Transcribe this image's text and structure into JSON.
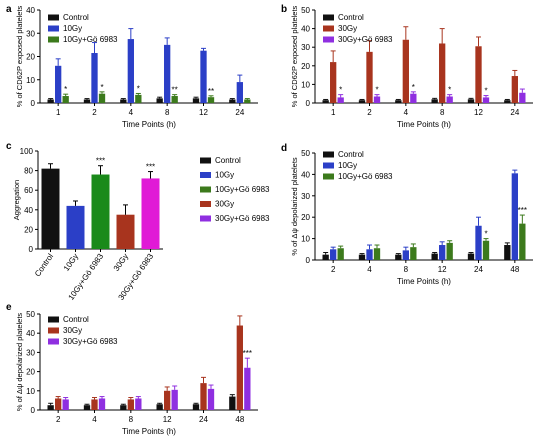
{
  "chart_data": [
    {
      "panel": "a",
      "type": "bar",
      "ylabel": "% of CD62P exposed platelets",
      "xlabel": "Time Points (h)",
      "categories": [
        "1",
        "2",
        "4",
        "8",
        "12",
        "24"
      ],
      "ylim": [
        0,
        40
      ],
      "yticks": [
        0,
        10,
        20,
        30,
        40
      ],
      "legend": "top-left",
      "series": [
        {
          "name": "Control",
          "color": "#111111",
          "values": [
            1.5,
            1.5,
            1.5,
            2,
            2,
            1.5
          ],
          "errors": [
            0.4,
            0.4,
            0.4,
            0.5,
            0.5,
            0.4
          ]
        },
        {
          "name": "10Gy",
          "color": "#2b3fc7",
          "values": [
            16,
            21.5,
            27.5,
            25,
            22.5,
            9
          ],
          "errors": [
            3,
            4.5,
            4.5,
            3,
            1,
            3
          ]
        },
        {
          "name": "10Gy+Gö 6983",
          "color": "#3c7a1c",
          "values": [
            3,
            4,
            3.5,
            3,
            2.5,
            1.5
          ],
          "errors": [
            0.8,
            0.8,
            0.6,
            0.6,
            0.6,
            0.4
          ]
        }
      ],
      "annotations": [
        "*",
        "*",
        "*",
        "**",
        "**",
        ""
      ]
    },
    {
      "panel": "b",
      "type": "bar",
      "ylabel": "% of CD62P exposed platelets",
      "xlabel": "Time Points (h)",
      "categories": [
        "1",
        "2",
        "4",
        "8",
        "12",
        "24"
      ],
      "ylim": [
        0,
        50
      ],
      "yticks": [
        0,
        10,
        20,
        30,
        40,
        50
      ],
      "legend": "top-left",
      "series": [
        {
          "name": "Control",
          "color": "#111111",
          "values": [
            1.5,
            1.5,
            1.5,
            2,
            2,
            1.5
          ],
          "errors": [
            0.4,
            0.4,
            0.4,
            0.5,
            0.5,
            0.4
          ]
        },
        {
          "name": "30Gy",
          "color": "#a8341e",
          "values": [
            22,
            27.5,
            34,
            32,
            30.5,
            14.5
          ],
          "errors": [
            6,
            6,
            7,
            8,
            5,
            3
          ]
        },
        {
          "name": "30Gy+Gö 6983",
          "color": "#8f2fe0",
          "values": [
            3,
            3.5,
            5,
            3.5,
            3,
            5.5
          ],
          "errors": [
            1.5,
            1,
            1,
            1,
            1,
            2
          ]
        }
      ],
      "annotations": [
        "*",
        "*",
        "*",
        "*",
        "*",
        ""
      ]
    },
    {
      "panel": "c",
      "type": "bar",
      "ylabel": "Aggregation",
      "categories": [
        "Control",
        "10Gy",
        "10Gy+Gö 6983",
        "30Gy",
        "30Gy+Gö 6983"
      ],
      "ylim": [
        0,
        100
      ],
      "yticks": [
        0,
        20,
        40,
        60,
        80,
        100
      ],
      "legend": "right",
      "series": [
        {
          "name": "Control",
          "color": "#111111"
        },
        {
          "name": "10Gy",
          "color": "#2b3fc7"
        },
        {
          "name": "10Gy+Gö 6983",
          "color": "#3c7a1c"
        },
        {
          "name": "30Gy",
          "color": "#a8341e"
        },
        {
          "name": "30Gy+Gö 6983",
          "color": "#8f2fe0"
        }
      ],
      "values": [
        82,
        44,
        76,
        35,
        72
      ],
      "errors": [
        5,
        5,
        9,
        10,
        7
      ],
      "colors": [
        "#111111",
        "#2b3fc7",
        "#1a8a1a",
        "#a8341e",
        "#e01ad6"
      ],
      "annotations": [
        "",
        "",
        "***",
        "",
        "***"
      ]
    },
    {
      "panel": "d",
      "type": "bar",
      "ylabel": "% of Δψ depolarized platelets",
      "xlabel": "Time Points (h)",
      "categories": [
        "2",
        "4",
        "8",
        "12",
        "24",
        "48"
      ],
      "ylim": [
        0,
        50
      ],
      "yticks": [
        0,
        10,
        20,
        30,
        40,
        50
      ],
      "legend": "top-left",
      "series": [
        {
          "name": "Control",
          "color": "#111111",
          "values": [
            2.5,
            2.5,
            2.5,
            3,
            3,
            7
          ],
          "errors": [
            1,
            0.5,
            0.5,
            0.5,
            0.5,
            1
          ]
        },
        {
          "name": "10Gy",
          "color": "#2b3fc7",
          "values": [
            5,
            5,
            4.5,
            7,
            16,
            40.5
          ],
          "errors": [
            1,
            2,
            1.5,
            1.5,
            4,
            1.5
          ]
        },
        {
          "name": "10Gy+Gö 6983",
          "color": "#3c7a1c",
          "values": [
            5.5,
            5.5,
            6,
            8,
            9,
            17
          ],
          "errors": [
            1,
            1.5,
            1.5,
            1,
            1,
            4
          ]
        }
      ],
      "annotations": [
        "",
        "",
        "",
        "",
        "*",
        "***"
      ]
    },
    {
      "panel": "e",
      "type": "bar",
      "ylabel": "% of Δψ depolarized platelets",
      "xlabel": "Time Points (h)",
      "categories": [
        "2",
        "4",
        "8",
        "12",
        "24",
        "48"
      ],
      "ylim": [
        0,
        50
      ],
      "yticks": [
        0,
        10,
        20,
        30,
        40,
        50
      ],
      "legend": "top-left",
      "series": [
        {
          "name": "Control",
          "color": "#111111",
          "values": [
            2.5,
            2.5,
            2.5,
            3,
            3,
            7
          ],
          "errors": [
            1,
            0.5,
            0.5,
            0.5,
            0.5,
            1
          ]
        },
        {
          "name": "30Gy",
          "color": "#a8341e",
          "values": [
            6,
            5.5,
            5.5,
            10,
            14,
            44
          ],
          "errors": [
            1,
            1,
            1,
            2,
            3,
            5
          ]
        },
        {
          "name": "30Gy+Gö 6983",
          "color": "#8f2fe0",
          "values": [
            5.5,
            6,
            6,
            10.5,
            11,
            22
          ],
          "errors": [
            1,
            1,
            1,
            2,
            2,
            5
          ]
        }
      ],
      "annotations": [
        "",
        "",
        "",
        "",
        "",
        "***"
      ]
    }
  ]
}
